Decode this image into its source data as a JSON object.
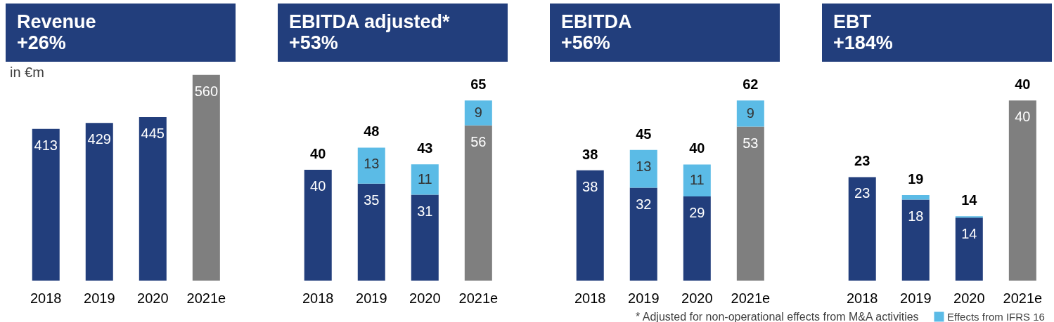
{
  "chart_data": [
    {
      "type": "bar",
      "title": "Revenue",
      "subtitle": "+26%",
      "categories": [
        "2018",
        "2019",
        "2020",
        "2021e"
      ],
      "data_labels": true,
      "annotations": [
        "in €m"
      ],
      "series": [
        {
          "colors": [
            "#223e7c",
            "#223e7c",
            "#223e7c",
            "#7f7f7f"
          ],
          "values": [
            413,
            429,
            445,
            560
          ]
        }
      ]
    },
    {
      "type": "bar",
      "title": "EBITDA adjusted*",
      "subtitle": "+53%",
      "categories": [
        "2018",
        "2019",
        "2020",
        "2021e"
      ],
      "stacked": true,
      "data_labels": true,
      "totals": [
        "40",
        "48",
        "43",
        "65"
      ],
      "series": [
        {
          "colors": [
            "#223e7c",
            "#223e7c",
            "#223e7c",
            "#7f7f7f"
          ],
          "values": [
            40,
            35,
            31,
            56
          ]
        },
        {
          "color": "#5bbbe6",
          "values": [
            null,
            13,
            11,
            9
          ]
        }
      ]
    },
    {
      "type": "bar",
      "title": "EBITDA",
      "subtitle": "+56%",
      "categories": [
        "2018",
        "2019",
        "2020",
        "2021e"
      ],
      "stacked": true,
      "data_labels": true,
      "totals": [
        "38",
        "45",
        "40",
        "62"
      ],
      "annotations": [
        "* Adjusted for non-operational effects from M&A activities"
      ],
      "series": [
        {
          "colors": [
            "#223e7c",
            "#223e7c",
            "#223e7c",
            "#7f7f7f"
          ],
          "values": [
            38,
            32,
            29,
            53
          ]
        },
        {
          "color": "#5bbbe6",
          "values": [
            null,
            13,
            11,
            9
          ]
        }
      ]
    },
    {
      "type": "bar",
      "title": "EBT",
      "subtitle": "+184%",
      "categories": [
        "2018",
        "2019",
        "2020",
        "2021e"
      ],
      "stacked": true,
      "legend": "bottom right",
      "totals": [
        "23",
        "19",
        "14",
        "40"
      ],
      "series": [
        {
          "colors": [
            "#223e7c",
            "#223e7c",
            "#223e7c",
            "#7f7f7f"
          ],
          "values": [
            23,
            18,
            14,
            40
          ],
          "value_labels": [
            "23",
            "18",
            "14",
            "40"
          ]
        },
        {
          "name": "Effects from IFRS 16",
          "color": "#5bbbe6",
          "values": [
            null,
            1,
            0.3,
            null
          ],
          "value_labels": [
            null,
            null,
            null,
            null
          ]
        }
      ]
    }
  ]
}
